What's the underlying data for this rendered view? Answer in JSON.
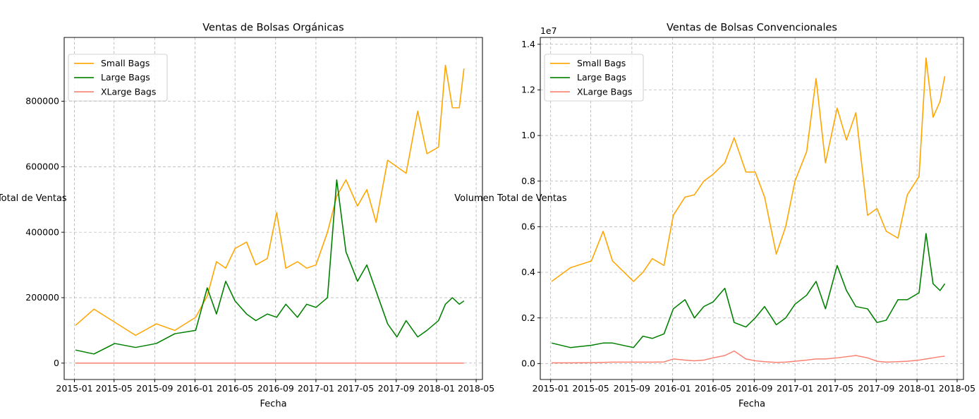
{
  "chart_data": [
    {
      "type": "line",
      "title": "Ventas de Bolsas Orgánicas",
      "xlabel": "Fecha",
      "ylabel": "Volumen Total de Ventas",
      "offset_text": "",
      "x_ticks": [
        "2015-01",
        "2015-05",
        "2015-09",
        "2016-01",
        "2016-05",
        "2016-09",
        "2017-01",
        "2017-05",
        "2017-09",
        "2018-01",
        "2018-05"
      ],
      "y_ticks": [
        "0",
        "200000",
        "400000",
        "600000",
        "800000"
      ],
      "y_tick_values": [
        0,
        200000,
        400000,
        600000,
        800000
      ],
      "xlim": [
        "2014-12-01",
        "2018-05-20"
      ],
      "ylim": [
        -50000,
        995000
      ],
      "grid": true,
      "legend_position": "top-left",
      "x": [
        "2015-01-04",
        "2015-03-01",
        "2015-05-03",
        "2015-07-05",
        "2015-09-06",
        "2015-11-01",
        "2016-01-03",
        "2016-02-07",
        "2016-03-06",
        "2016-04-03",
        "2016-05-01",
        "2016-06-05",
        "2016-07-03",
        "2016-08-07",
        "2016-09-04",
        "2016-10-02",
        "2016-11-06",
        "2016-12-04",
        "2017-01-01",
        "2017-02-05",
        "2017-03-05",
        "2017-04-02",
        "2017-05-07",
        "2017-06-04",
        "2017-07-02",
        "2017-08-06",
        "2017-09-03",
        "2017-10-01",
        "2017-11-05",
        "2017-12-03",
        "2018-01-07",
        "2018-01-28",
        "2018-02-18",
        "2018-03-11",
        "2018-03-25"
      ],
      "series": [
        {
          "name": "Small Bags",
          "color": "#ffa500",
          "values": [
            115000,
            165000,
            125000,
            85000,
            120000,
            100000,
            140000,
            205000,
            310000,
            290000,
            350000,
            370000,
            300000,
            320000,
            460000,
            290000,
            310000,
            290000,
            300000,
            400000,
            510000,
            560000,
            480000,
            530000,
            430000,
            620000,
            600000,
            580000,
            770000,
            640000,
            660000,
            910000,
            780000,
            780000,
            900000
          ]
        },
        {
          "name": "Large Bags",
          "color": "#008000",
          "values": [
            40000,
            28000,
            60000,
            48000,
            60000,
            90000,
            100000,
            230000,
            150000,
            250000,
            190000,
            150000,
            130000,
            150000,
            140000,
            180000,
            140000,
            180000,
            170000,
            200000,
            560000,
            340000,
            250000,
            300000,
            220000,
            120000,
            80000,
            130000,
            80000,
            100000,
            130000,
            180000,
            200000,
            180000,
            190000
          ]
        },
        {
          "name": "XLarge Bags",
          "color": "#fa8072",
          "values": [
            0,
            0,
            0,
            0,
            0,
            0,
            0,
            0,
            0,
            0,
            0,
            0,
            0,
            0,
            0,
            0,
            0,
            0,
            0,
            0,
            0,
            0,
            0,
            0,
            0,
            0,
            0,
            0,
            0,
            0,
            0,
            0,
            0,
            0,
            0
          ]
        }
      ]
    },
    {
      "type": "line",
      "title": "Ventas de Bolsas Convencionales",
      "xlabel": "Fecha",
      "ylabel": "Volumen Total de Ventas",
      "offset_text": "1e7",
      "x_ticks": [
        "2015-01",
        "2015-05",
        "2015-09",
        "2016-01",
        "2016-05",
        "2016-09",
        "2017-01",
        "2017-05",
        "2017-09",
        "2018-01",
        "2018-05"
      ],
      "y_ticks": [
        "0.0",
        "0.2",
        "0.4",
        "0.6",
        "0.8",
        "1.0",
        "1.2",
        "1.4"
      ],
      "y_tick_values": [
        0,
        2000000,
        4000000,
        6000000,
        8000000,
        10000000,
        12000000,
        14000000
      ],
      "xlim": [
        "2014-12-01",
        "2018-05-20"
      ],
      "ylim": [
        -700000,
        14300000
      ],
      "grid": true,
      "legend_position": "top-left",
      "x": [
        "2015-01-04",
        "2015-03-01",
        "2015-05-03",
        "2015-06-07",
        "2015-07-05",
        "2015-09-06",
        "2015-10-04",
        "2015-11-01",
        "2015-12-06",
        "2016-01-03",
        "2016-02-07",
        "2016-03-06",
        "2016-04-03",
        "2016-05-01",
        "2016-06-05",
        "2016-07-03",
        "2016-08-07",
        "2016-09-04",
        "2016-10-02",
        "2016-11-06",
        "2016-12-04",
        "2017-01-01",
        "2017-02-05",
        "2017-03-05",
        "2017-04-02",
        "2017-05-07",
        "2017-06-04",
        "2017-07-02",
        "2017-08-06",
        "2017-09-03",
        "2017-10-01",
        "2017-11-05",
        "2017-12-03",
        "2018-01-07",
        "2018-01-28",
        "2018-02-18",
        "2018-03-11",
        "2018-03-25"
      ],
      "series": [
        {
          "name": "Small Bags",
          "color": "#ffa500",
          "values": [
            3600000,
            4200000,
            4500000,
            5800000,
            4500000,
            3600000,
            4000000,
            4600000,
            4300000,
            6500000,
            7300000,
            7400000,
            8000000,
            8300000,
            8800000,
            9900000,
            8400000,
            8400000,
            7300000,
            4800000,
            6000000,
            8000000,
            9300000,
            12500000,
            8800000,
            11200000,
            9800000,
            11000000,
            6500000,
            6800000,
            5800000,
            5500000,
            7400000,
            8200000,
            13400000,
            10800000,
            11500000,
            12600000
          ]
        },
        {
          "name": "Large Bags",
          "color": "#008000",
          "values": [
            900000,
            700000,
            800000,
            900000,
            900000,
            700000,
            1200000,
            1100000,
            1300000,
            2400000,
            2800000,
            2000000,
            2500000,
            2700000,
            3300000,
            1800000,
            1600000,
            2000000,
            2500000,
            1700000,
            2000000,
            2600000,
            3000000,
            3600000,
            2400000,
            4300000,
            3200000,
            2500000,
            2400000,
            1800000,
            1900000,
            2800000,
            2800000,
            3100000,
            5700000,
            3500000,
            3200000,
            3500000
          ]
        },
        {
          "name": "XLarge Bags",
          "color": "#fa8072",
          "values": [
            30000,
            30000,
            40000,
            50000,
            60000,
            60000,
            60000,
            60000,
            70000,
            200000,
            150000,
            120000,
            150000,
            250000,
            350000,
            550000,
            200000,
            120000,
            80000,
            50000,
            60000,
            100000,
            150000,
            200000,
            200000,
            250000,
            300000,
            350000,
            250000,
            100000,
            60000,
            80000,
            100000,
            150000,
            200000,
            250000,
            300000,
            320000
          ]
        }
      ]
    }
  ]
}
